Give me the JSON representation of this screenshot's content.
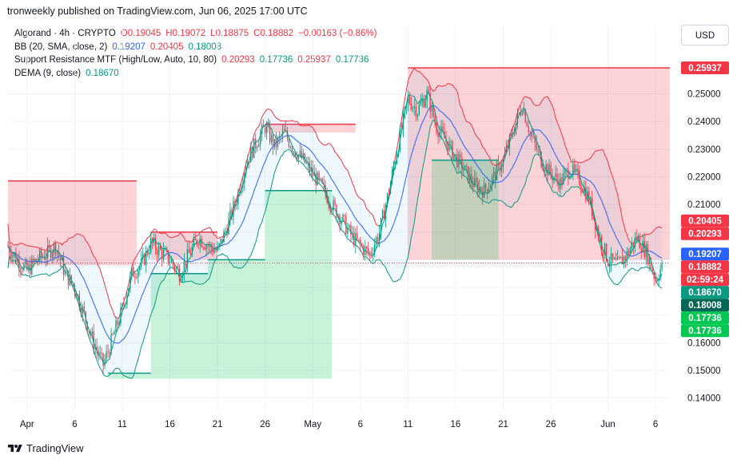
{
  "header": {
    "published": "tronweekly published on TradingView.com, Jun 06, 2025 17:00 UTC"
  },
  "legend": {
    "main": {
      "title": "Algorand · 4h · CRYPTO",
      "o": "O0.19045",
      "h": "H0.19072",
      "l": "L0.18875",
      "c": "C0.18882",
      "chg": "−0.00163 (−0.86%)"
    },
    "bb": {
      "title": "BB (20, SMA, close, 2)",
      "v1": "0.19207",
      "v2": "0.20405",
      "v3": "0.18008"
    },
    "sr": {
      "title": "Support Resistance MTF (High/Low, Auto, 10, 80)",
      "v1": "0.20293",
      "v2": "0.17736",
      "v3": "0.25937",
      "v4": "0.17736"
    },
    "dema": {
      "title": "DEMA (9, close)",
      "v1": "0.18670"
    }
  },
  "currency_button": "USD",
  "footer": {
    "brand": "TradingView"
  },
  "price_labels": [
    {
      "text": "0.25937",
      "value": 0.25937,
      "color": "#f23645"
    },
    {
      "text": "0.20405",
      "value": 0.20405,
      "color": "#f23645"
    },
    {
      "text": "0.20293",
      "value": 0.20293,
      "color": "#f23645"
    },
    {
      "text": "0.19207",
      "value": 0.19207,
      "color": "#2962ff"
    },
    {
      "text": "0.18882",
      "value": 0.18882,
      "color": "#f23645"
    },
    {
      "text": "02:59:24",
      "value": 0.18882,
      "color": "#f23645",
      "countdown": true
    },
    {
      "text": "0.18670",
      "value": 0.1867,
      "color": "#089981"
    },
    {
      "text": "0.18008",
      "value": 0.18008,
      "color": "#056656"
    },
    {
      "text": "0.17736",
      "value": 0.17736,
      "color": "#00c853"
    },
    {
      "text": "0.17736",
      "value": 0.17736,
      "color": "#00c853",
      "second": true
    }
  ],
  "chart_data": {
    "type": "candlestick",
    "symbol": "ALGOUSD",
    "interval": "4h",
    "ylim": [
      0.135,
      0.266
    ],
    "y_ticks": [
      "0.14000",
      "0.15000",
      "0.16000",
      "0.17000",
      "0.18000",
      "0.19000",
      "0.20000",
      "0.21000",
      "0.22000",
      "0.23000",
      "0.24000",
      "0.25000"
    ],
    "y_tick_values": [
      0.14,
      0.15,
      0.16,
      0.17,
      0.18,
      0.19,
      0.2,
      0.21,
      0.22,
      0.23,
      0.24,
      0.25
    ],
    "x_ticks": [
      "Apr",
      "6",
      "11",
      "16",
      "21",
      "26",
      "May",
      "6",
      "11",
      "16",
      "21",
      "26",
      "Jun",
      "6"
    ],
    "x_tick_days": [
      0,
      5,
      10,
      15,
      20,
      25,
      30,
      35,
      40,
      45,
      50,
      55,
      61,
      66
    ],
    "x_range_days": [
      -2,
      67.5
    ],
    "close_anchors": [
      [
        -2,
        0.195
      ],
      [
        -1,
        0.19
      ],
      [
        0,
        0.186
      ],
      [
        1,
        0.19
      ],
      [
        2,
        0.192
      ],
      [
        3,
        0.195
      ],
      [
        4,
        0.185
      ],
      [
        5,
        0.18
      ],
      [
        6,
        0.17
      ],
      [
        7,
        0.16
      ],
      [
        8,
        0.152
      ],
      [
        9,
        0.162
      ],
      [
        10,
        0.172
      ],
      [
        11,
        0.185
      ],
      [
        12,
        0.188
      ],
      [
        13,
        0.196
      ],
      [
        14,
        0.193
      ],
      [
        15,
        0.19
      ],
      [
        16,
        0.185
      ],
      [
        17,
        0.192
      ],
      [
        18,
        0.198
      ],
      [
        19,
        0.195
      ],
      [
        20,
        0.193
      ],
      [
        21,
        0.202
      ],
      [
        22,
        0.212
      ],
      [
        23,
        0.225
      ],
      [
        24,
        0.232
      ],
      [
        25,
        0.238
      ],
      [
        26,
        0.231
      ],
      [
        27,
        0.236
      ],
      [
        28,
        0.23
      ],
      [
        29,
        0.226
      ],
      [
        30,
        0.221
      ],
      [
        31,
        0.216
      ],
      [
        32,
        0.21
      ],
      [
        33,
        0.205
      ],
      [
        34,
        0.199
      ],
      [
        35,
        0.195
      ],
      [
        36,
        0.192
      ],
      [
        37,
        0.2
      ],
      [
        38,
        0.215
      ],
      [
        39,
        0.232
      ],
      [
        40,
        0.248
      ],
      [
        41,
        0.244
      ],
      [
        42,
        0.25
      ],
      [
        43,
        0.238
      ],
      [
        44,
        0.233
      ],
      [
        45,
        0.227
      ],
      [
        46,
        0.222
      ],
      [
        47,
        0.217
      ],
      [
        48,
        0.215
      ],
      [
        49,
        0.22
      ],
      [
        50,
        0.226
      ],
      [
        51,
        0.236
      ],
      [
        52,
        0.246
      ],
      [
        53,
        0.234
      ],
      [
        54,
        0.226
      ],
      [
        55,
        0.221
      ],
      [
        56,
        0.218
      ],
      [
        57,
        0.223
      ],
      [
        58,
        0.219
      ],
      [
        59,
        0.212
      ],
      [
        60,
        0.199
      ],
      [
        61,
        0.19
      ],
      [
        62,
        0.188
      ],
      [
        63,
        0.192
      ],
      [
        64,
        0.198
      ],
      [
        65,
        0.193
      ],
      [
        66,
        0.183
      ],
      [
        66.8,
        0.1888
      ]
    ],
    "resistance_zones": [
      {
        "x0": -2,
        "x1": 11.5,
        "y_top": 0.2185,
        "y_bottom": 0.188
      },
      {
        "x0": 13,
        "x1": 20,
        "y_top": 0.2,
        "y_bottom": 0.19
      },
      {
        "x0": 25,
        "x1": 34.5,
        "y_top": 0.239,
        "y_bottom": 0.236
      },
      {
        "x0": 40,
        "x1": 67.5,
        "y_top": 0.25937,
        "y_bottom": 0.19
      }
    ],
    "support_zones": [
      {
        "x0": 8.5,
        "x1": 13,
        "y_top": 0.149,
        "y_bottom": 0.147
      },
      {
        "x0": 13,
        "x1": 19,
        "y_top": 0.185,
        "y_bottom": 0.147
      },
      {
        "x0": 19,
        "x1": 25,
        "y_top": 0.19,
        "y_bottom": 0.147
      },
      {
        "x0": 25,
        "x1": 32,
        "y_top": 0.215,
        "y_bottom": 0.147
      },
      {
        "x0": 42.5,
        "x1": 49.5,
        "y_top": 0.226,
        "y_bottom": 0.19
      }
    ],
    "current_price": 0.18882
  }
}
